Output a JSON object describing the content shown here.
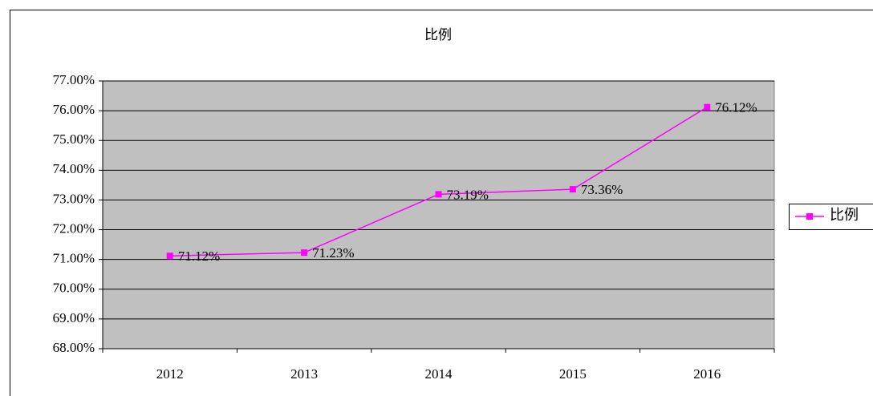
{
  "chart_data": {
    "type": "line",
    "title": "比例",
    "categories": [
      "2012",
      "2013",
      "2014",
      "2015",
      "2016"
    ],
    "series": [
      {
        "name": "比例",
        "color": "#ff00ff",
        "values": [
          71.12,
          71.23,
          73.19,
          73.36,
          76.12
        ],
        "value_labels": [
          "71.12%",
          "71.23%",
          "73.19%",
          "73.36%",
          "76.12%"
        ]
      }
    ],
    "ylim": [
      68,
      77
    ],
    "yticks": [
      {
        "value": 68,
        "label": "68.00%"
      },
      {
        "value": 69,
        "label": "69.00%"
      },
      {
        "value": 70,
        "label": "70.00%"
      },
      {
        "value": 71,
        "label": "71.00%"
      },
      {
        "value": 72,
        "label": "72.00%"
      },
      {
        "value": 73,
        "label": "73.00%"
      },
      {
        "value": 74,
        "label": "74.00%"
      },
      {
        "value": 75,
        "label": "75.00%"
      },
      {
        "value": 76,
        "label": "76.00%"
      },
      {
        "value": 77,
        "label": "77.00%"
      }
    ],
    "grid": true,
    "legend": "right",
    "plot_background": "#c0c0c0"
  }
}
